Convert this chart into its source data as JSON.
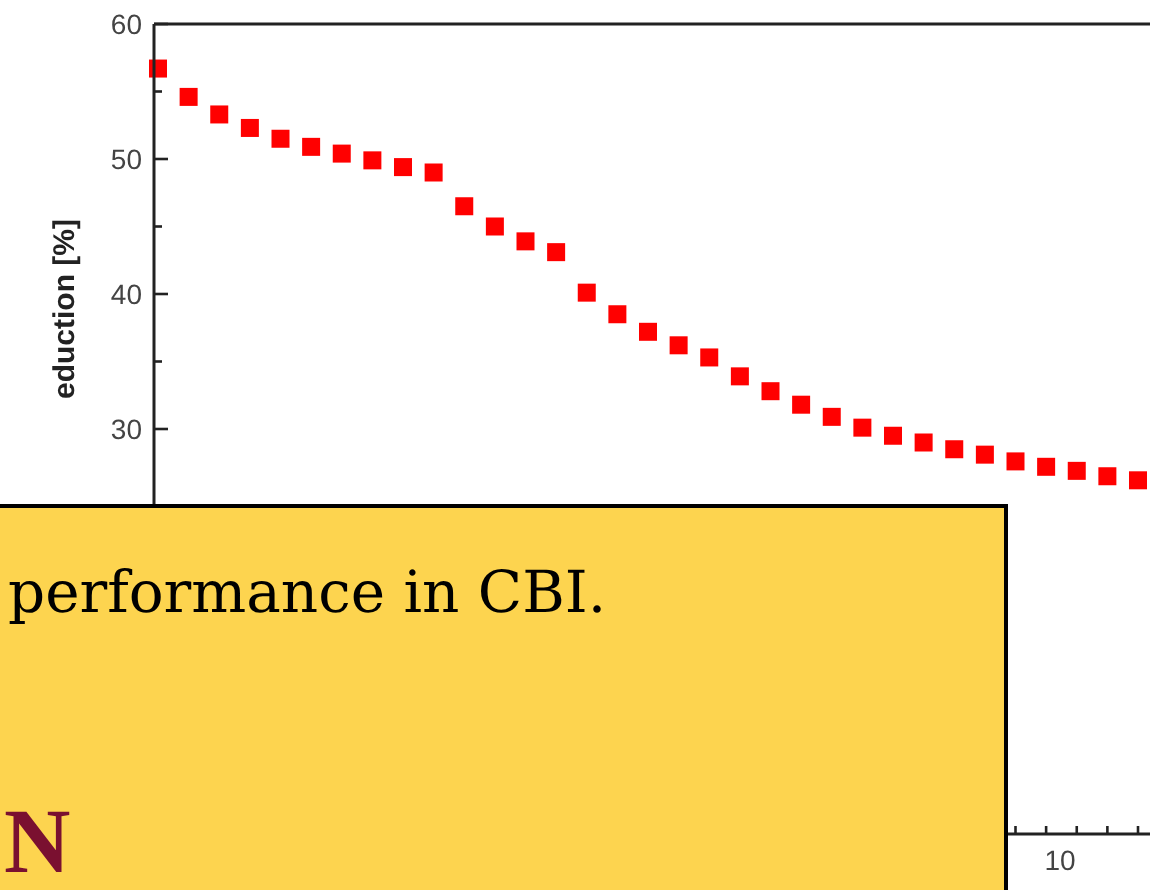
{
  "chart_data": {
    "type": "scatter",
    "ylabel": "eduction [%]",
    "marker": "square",
    "categories": [
      null,
      null,
      null,
      null,
      null,
      null,
      null,
      null,
      null,
      null,
      null,
      null,
      null,
      null,
      null,
      null,
      null,
      null,
      null,
      null,
      null,
      null,
      null,
      null,
      null,
      null,
      null,
      null,
      null,
      null,
      null,
      null,
      null
    ],
    "series": [
      {
        "color": "#ff0000",
        "values": [
          56.7,
          54.6,
          53.3,
          52.3,
          51.5,
          50.9,
          50.4,
          49.9,
          49.4,
          49.0,
          46.5,
          45.0,
          43.9,
          43.1,
          40.1,
          38.5,
          37.2,
          36.2,
          35.3,
          33.9,
          32.8,
          31.8,
          30.9,
          30.1,
          29.5,
          29.0,
          28.5,
          28.1,
          27.6,
          27.2,
          26.9,
          26.5,
          26.2
        ]
      }
    ],
    "ylim": [
      0,
      60
    ],
    "yticks": [
      30,
      40,
      50,
      60
    ],
    "annotations": [
      "10",
      "performance in CBI.",
      "N"
    ]
  }
}
